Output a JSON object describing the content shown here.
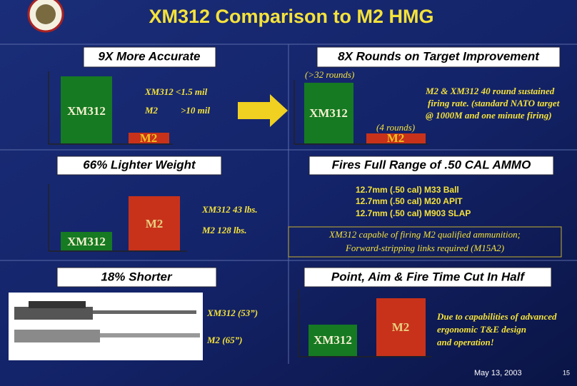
{
  "title": "XM312 Comparison to M2 HMG",
  "panels": [
    {
      "header": "9X More Accurate",
      "bars": [
        "XM312",
        "M2"
      ],
      "notes": [
        "XM312 <1.5 mil",
        "M2",
        ">10 mil"
      ]
    },
    {
      "header": "8X Rounds on Target Improvement",
      "bars": [
        "XM312",
        "M2"
      ],
      "annotations": [
        "(>32 rounds)",
        "(4 rounds)"
      ],
      "notes": [
        "M2 & XM312 40 round sustained",
        "firing rate. (standard NATO  target",
        "@ 1000M and one minute firing)"
      ]
    },
    {
      "header": "66% Lighter Weight",
      "bars": [
        "XM312",
        "M2"
      ],
      "notes": [
        "XM312  43 lbs.",
        "M2 128 lbs."
      ]
    },
    {
      "header": "Fires Full Range of .50 CAL AMMO",
      "ammo": [
        "12.7mm (.50 cal) M33 Ball",
        "12.7mm (.50 cal) M20 APIT",
        "12.7mm (.50 cal) M903 SLAP"
      ],
      "box": [
        "XM312 capable of firing M2 qualified ammunition;",
        "Forward-stripping links required (M15A2)"
      ]
    },
    {
      "header": "18% Shorter",
      "notes": [
        "XM312 (53”)",
        "M2 (65”)"
      ]
    },
    {
      "header": "Point, Aim & Fire Time Cut In Half",
      "bars": [
        "XM312",
        "M2"
      ],
      "notes": [
        "Due to capabilities of advanced",
        "ergonomic T&E design",
        "and operation!"
      ]
    }
  ],
  "footer": {
    "date": "May 13, 2003",
    "page": "15"
  }
}
